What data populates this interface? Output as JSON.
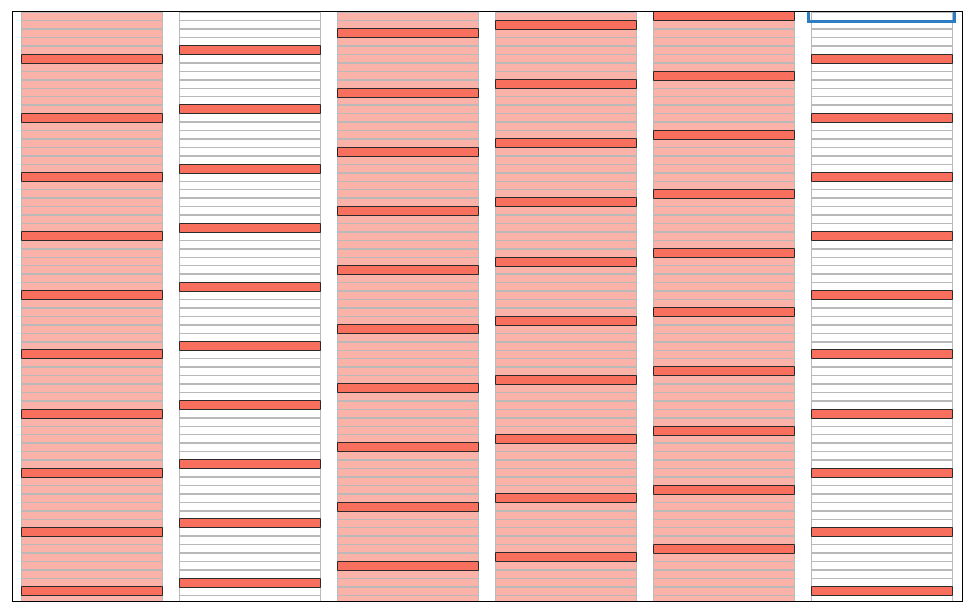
{
  "board": {
    "colors": {
      "background": "#ffffff",
      "frame": "#000000",
      "slot_border": "#b9b9b9",
      "filled_column": "#fbb3a9",
      "empty_column": "#ffffff",
      "marker_fill": "#f96f5e",
      "marker_border": "#2b2b2b",
      "cursor_border": "#2d7dc2"
    },
    "columns": [
      {
        "filled": true,
        "marker_phase": 6
      },
      {
        "filled": false,
        "marker_phase": 5
      },
      {
        "filled": true,
        "marker_phase": 3
      },
      {
        "filled": true,
        "marker_phase": 2
      },
      {
        "filled": true,
        "marker_phase": 1
      },
      {
        "filled": false,
        "marker_phase": 6
      }
    ],
    "marker_period": 7,
    "cursor": {
      "column": 6,
      "row": 1
    }
  }
}
